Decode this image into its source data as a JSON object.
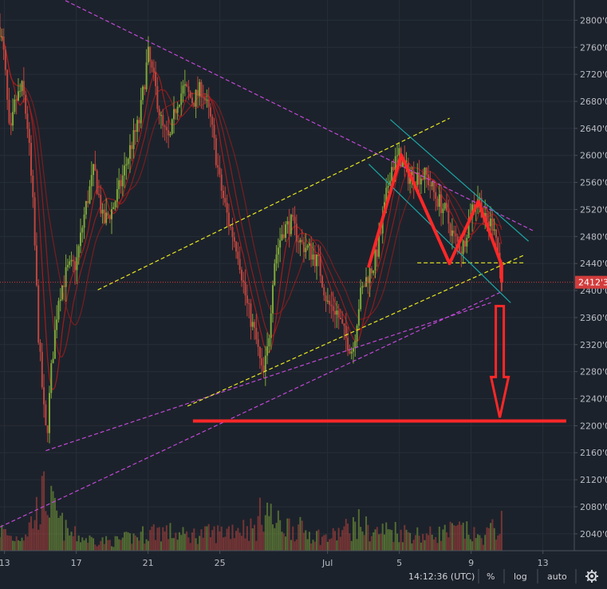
{
  "chart_data": {
    "type": "candlestick",
    "title": "",
    "xlabel": "",
    "ylabel": "",
    "ylim": [
      2015,
      2830
    ],
    "y_ticks": [
      "2040'0",
      "2080'0",
      "2120'0",
      "2160'0",
      "2200'0",
      "2240'0",
      "2280'0",
      "2320'0",
      "2360'0",
      "2400'0",
      "2440'0",
      "2480'0",
      "2520'0",
      "2560'0",
      "2600'0",
      "2640'0",
      "2680'0",
      "2720'0",
      "2760'0",
      "2800'0"
    ],
    "x_ticks": [
      {
        "label": "13",
        "day": 13
      },
      {
        "label": "17",
        "day": 17
      },
      {
        "label": "21",
        "day": 21
      },
      {
        "label": "25",
        "day": 25
      },
      {
        "label": "Jul",
        "day": 31
      },
      {
        "label": "5",
        "day": 35
      },
      {
        "label": "9",
        "day": 39
      },
      {
        "label": "13",
        "day": 43
      }
    ],
    "x_range": [
      12.75,
      44.75
    ],
    "last_price": {
      "label": "2412'3",
      "value": 2412.3
    },
    "price_path": [
      [
        12.75,
        2790
      ],
      [
        13.0,
        2740
      ],
      [
        13.3,
        2620
      ],
      [
        13.6,
        2680
      ],
      [
        14.0,
        2700
      ],
      [
        14.3,
        2640
      ],
      [
        14.6,
        2520
      ],
      [
        14.9,
        2330
      ],
      [
        15.2,
        2220
      ],
      [
        15.35,
        2180
      ],
      [
        15.6,
        2280
      ],
      [
        16.0,
        2390
      ],
      [
        16.5,
        2430
      ],
      [
        17.0,
        2440
      ],
      [
        17.5,
        2520
      ],
      [
        18.0,
        2580
      ],
      [
        18.5,
        2500
      ],
      [
        19.0,
        2520
      ],
      [
        19.5,
        2560
      ],
      [
        20.0,
        2610
      ],
      [
        20.5,
        2650
      ],
      [
        21.0,
        2750
      ],
      [
        21.4,
        2700
      ],
      [
        21.8,
        2640
      ],
      [
        22.2,
        2620
      ],
      [
        22.6,
        2680
      ],
      [
        23.0,
        2700
      ],
      [
        23.5,
        2680
      ],
      [
        24.0,
        2700
      ],
      [
        24.5,
        2650
      ],
      [
        25.0,
        2560
      ],
      [
        25.5,
        2500
      ],
      [
        26.0,
        2460
      ],
      [
        26.5,
        2380
      ],
      [
        27.0,
        2330
      ],
      [
        27.4,
        2270
      ],
      [
        27.7,
        2320
      ],
      [
        28.0,
        2440
      ],
      [
        28.5,
        2490
      ],
      [
        29.0,
        2500
      ],
      [
        29.5,
        2470
      ],
      [
        30.0,
        2460
      ],
      [
        30.5,
        2440
      ],
      [
        31.0,
        2380
      ],
      [
        31.5,
        2370
      ],
      [
        32.0,
        2330
      ],
      [
        32.4,
        2310
      ],
      [
        32.8,
        2390
      ],
      [
        33.2,
        2420
      ],
      [
        33.6,
        2440
      ],
      [
        34.0,
        2490
      ],
      [
        34.5,
        2580
      ],
      [
        35.0,
        2600
      ],
      [
        35.5,
        2570
      ],
      [
        36.0,
        2570
      ],
      [
        36.5,
        2570
      ],
      [
        37.0,
        2540
      ],
      [
        37.5,
        2520
      ],
      [
        38.0,
        2480
      ],
      [
        38.5,
        2460
      ],
      [
        39.0,
        2520
      ],
      [
        39.4,
        2540
      ],
      [
        39.8,
        2500
      ],
      [
        40.3,
        2500
      ],
      [
        40.7,
        2412
      ]
    ],
    "volume_path": [
      [
        12.75,
        0.35
      ],
      [
        13.5,
        0.2
      ],
      [
        14.2,
        0.3
      ],
      [
        15.3,
        0.95
      ],
      [
        15.8,
        0.6
      ],
      [
        16.5,
        0.3
      ],
      [
        17.5,
        0.2
      ],
      [
        19.0,
        0.15
      ],
      [
        20.5,
        0.25
      ],
      [
        21.5,
        0.35
      ],
      [
        23.0,
        0.25
      ],
      [
        25.0,
        0.3
      ],
      [
        26.0,
        0.4
      ],
      [
        27.0,
        0.35
      ],
      [
        27.5,
        0.8
      ],
      [
        28.0,
        0.45
      ],
      [
        29.0,
        0.4
      ],
      [
        30.0,
        0.3
      ],
      [
        31.0,
        0.2
      ],
      [
        32.0,
        0.35
      ],
      [
        32.8,
        0.45
      ],
      [
        33.5,
        0.3
      ],
      [
        34.5,
        0.35
      ],
      [
        35.5,
        0.3
      ],
      [
        36.5,
        0.25
      ],
      [
        37.5,
        0.3
      ],
      [
        38.5,
        0.35
      ],
      [
        39.5,
        0.2
      ],
      [
        40.7,
        0.45
      ]
    ],
    "annotations": {
      "trendlines": [
        {
          "color": "#c048d8",
          "style": "dashed",
          "points": [
            [
              14.8,
              2850
            ],
            [
              42.5,
              2488
            ]
          ]
        },
        {
          "color": "#c048d8",
          "style": "dashed",
          "points": [
            [
              12.75,
              2050
            ],
            [
              40.6,
              2397
            ]
          ]
        },
        {
          "color": "#c048d8",
          "style": "dashed",
          "points": [
            [
              15.3,
              2163
            ],
            [
              40.1,
              2382
            ]
          ]
        },
        {
          "color": "#e8e820",
          "style": "dashed",
          "points": [
            [
              18.2,
              2401
            ],
            [
              37.8,
              2655
            ]
          ]
        },
        {
          "color": "#e8e820",
          "style": "dashed",
          "points": [
            [
              23.2,
              2229
            ],
            [
              42.0,
              2453
            ]
          ]
        },
        {
          "color": "#e8e820",
          "style": "dashed",
          "points": [
            [
              36.0,
              2441
            ],
            [
              42.0,
              2441
            ]
          ]
        },
        {
          "color": "#1aa6a6",
          "style": "solid",
          "points": [
            [
              34.5,
              2653
            ],
            [
              42.2,
              2473
            ]
          ]
        },
        {
          "color": "#1aa6a6",
          "style": "solid",
          "points": [
            [
              33.3,
              2587
            ],
            [
              41.2,
              2382
            ]
          ]
        },
        {
          "color": "#ff2828",
          "style": "solid",
          "points": [
            [
              23.5,
              2207
            ],
            [
              44.3,
              2207
            ]
          ]
        }
      ],
      "pattern": {
        "color": "#ff2828",
        "points": [
          [
            33.3,
            2436
          ],
          [
            35.1,
            2601
          ],
          [
            37.8,
            2440
          ],
          [
            39.4,
            2532
          ],
          [
            40.7,
            2438
          ],
          [
            40.7,
            2414
          ]
        ]
      },
      "arrow": {
        "color": "#ff2828",
        "x": 40.6,
        "top": 2377,
        "shaft_bottom": 2272,
        "tip": 2212
      }
    },
    "colors": {
      "up": "#7fa83a",
      "down": "#c0453e",
      "ma": "#b01c1c",
      "volume_up": "#7fa83a",
      "volume_down": "#c0453e",
      "price_line": "#d23c3c"
    }
  },
  "footer": {
    "time": "14:12:36 (UTC)",
    "percent": "%",
    "log": "log",
    "auto": "auto",
    "settings_icon": "gear-icon"
  }
}
